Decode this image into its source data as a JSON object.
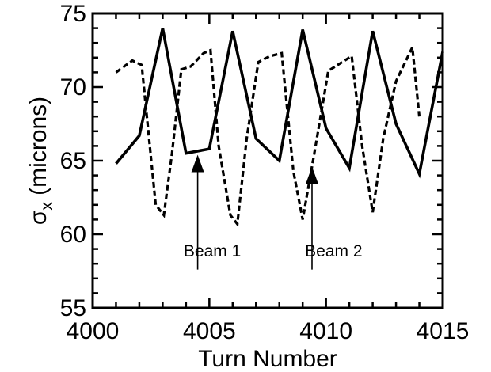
{
  "chart_data": {
    "type": "line",
    "title": "",
    "xlabel": "Turn Number",
    "ylabel": {
      "main": "σ",
      "sub": "x",
      "rest": " (microns)"
    },
    "xlim": [
      4000,
      4015
    ],
    "ylim": [
      55,
      75
    ],
    "xticks": [
      4000,
      4005,
      4010,
      4015
    ],
    "yticks": [
      55,
      60,
      65,
      70,
      75
    ],
    "x_minor_step": 1,
    "y_minor_step": 1,
    "series": [
      {
        "style": "solid",
        "color": "#000000",
        "x": [
          4001,
          4002,
          4003,
          4004,
          4005,
          4006,
          4007,
          4008,
          4009,
          4010,
          4011,
          4012,
          4013,
          4014,
          4015
        ],
        "y": [
          64.8,
          66.7,
          74.0,
          65.5,
          65.8,
          73.8,
          66.5,
          65.0,
          73.9,
          67.2,
          64.5,
          73.8,
          67.5,
          64.1,
          72.4
        ]
      },
      {
        "style": "dashed",
        "color": "#000000",
        "x": [
          4001,
          4001.7,
          4002.1,
          4002.7,
          4003.05,
          4003.4,
          4003.8,
          4004.2,
          4004.75,
          4005.05,
          4005.4,
          4005.9,
          4006.2,
          4006.6,
          4007.1,
          4007.6,
          4008.1,
          4008.6,
          4009.0,
          4009.5,
          4010.1,
          4010.6,
          4011.1,
          4011.55,
          4012.0,
          4012.45,
          4013.0,
          4013.7,
          4014.0
        ],
        "y": [
          71.0,
          71.8,
          71.5,
          62.0,
          61.3,
          65.5,
          71.2,
          71.4,
          72.3,
          72.5,
          66.0,
          61.3,
          60.7,
          66.5,
          71.7,
          72.1,
          72.3,
          64.3,
          61.0,
          65.5,
          71.1,
          71.6,
          72.1,
          66.0,
          61.5,
          66.5,
          70.4,
          72.7,
          68.0
        ]
      }
    ],
    "annotations": [
      {
        "text": "Beam 1",
        "text_x": 4003.9,
        "text_y": 58.5,
        "arrow_from_y": 57.6,
        "arrow_to_x": 4004.5,
        "arrow_to_y": 65.4
      },
      {
        "text": "Beam 2",
        "text_x": 4009.1,
        "text_y": 58.5,
        "arrow_from_y": 57.6,
        "arrow_to_x": 4009.4,
        "arrow_to_y": 64.6
      }
    ]
  }
}
